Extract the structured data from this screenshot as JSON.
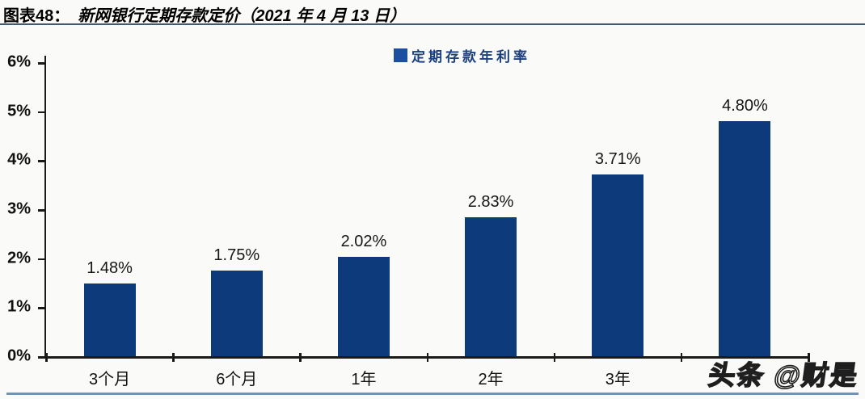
{
  "header": {
    "figure_label": "图表48：",
    "title": "新网银行定期存款定价（2021 年 4 月 13 日）"
  },
  "legend": {
    "label": "定期存款年利率",
    "marker_color": "#1d4fa1"
  },
  "colors": {
    "bar": "#0d3a7b",
    "axis": "#1a1a1a",
    "title_rule": "#44596e",
    "bottom_rule": "#6f94ba",
    "background": "#fafaf8",
    "legend_text": "#1c3f7d"
  },
  "watermark": {
    "text": "头条 @财是"
  },
  "chart_data": {
    "type": "bar",
    "title": "新网银行定期存款定价（2021 年 4 月 13 日）",
    "legend_entries": [
      "定期存款年利率"
    ],
    "legend_position": "top-center",
    "categories": [
      "3个月",
      "6个月",
      "1年",
      "2年",
      "3年",
      ""
    ],
    "values": [
      1.48,
      1.75,
      2.02,
      2.83,
      3.71,
      4.8
    ],
    "value_labels": [
      "1.48%",
      "1.75%",
      "2.02%",
      "2.83%",
      "3.71%",
      "4.80%"
    ],
    "ylabel": "",
    "xlabel": "",
    "ylim": [
      0,
      6
    ],
    "y_tick_labels": [
      "0%",
      "1%",
      "2%",
      "3%",
      "4%",
      "5%",
      "6%"
    ],
    "grid": false
  }
}
